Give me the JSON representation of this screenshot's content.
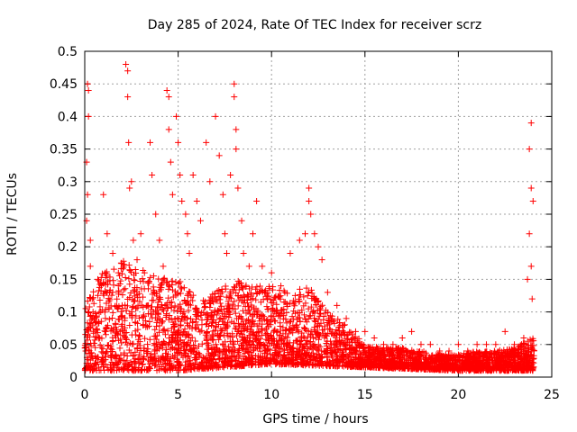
{
  "chart_data": {
    "type": "scatter",
    "title": "Day 285 of 2024, Rate Of TEC Index for receiver scrz",
    "xlabel": "GPS time / hours",
    "ylabel": "ROTI / TECUs",
    "xlim": [
      0,
      25
    ],
    "ylim": [
      0,
      0.5
    ],
    "xticks": [
      0,
      5,
      10,
      15,
      20,
      25
    ],
    "xtick_labels": [
      "0",
      "5",
      "10",
      "15",
      "20",
      "25"
    ],
    "yticks": [
      0,
      0.05,
      0.1,
      0.15,
      0.2,
      0.25,
      0.3,
      0.35,
      0.4,
      0.45,
      0.5
    ],
    "ytick_labels": [
      "0",
      "0.05",
      "0.1",
      "0.15",
      "0.2",
      "0.25",
      "0.3",
      "0.35",
      "0.4",
      "0.45",
      "0.5"
    ],
    "grid": true,
    "marker": "+",
    "color": "#ff0000",
    "series": [
      {
        "name": "ROTI",
        "points": [
          [
            0.05,
            0.04
          ],
          [
            0.1,
            0.33
          ],
          [
            0.1,
            0.24
          ],
          [
            0.15,
            0.45
          ],
          [
            0.2,
            0.4
          ],
          [
            0.2,
            0.44
          ],
          [
            0.15,
            0.28
          ],
          [
            0.3,
            0.21
          ],
          [
            0.3,
            0.17
          ],
          [
            0.4,
            0.12
          ],
          [
            0.5,
            0.09
          ],
          [
            0.7,
            0.15
          ],
          [
            1.0,
            0.28
          ],
          [
            1.2,
            0.22
          ],
          [
            1.5,
            0.19
          ],
          [
            1.8,
            0.16
          ],
          [
            2.0,
            0.11
          ],
          [
            2.2,
            0.48
          ],
          [
            2.3,
            0.47
          ],
          [
            2.3,
            0.43
          ],
          [
            2.35,
            0.36
          ],
          [
            2.4,
            0.29
          ],
          [
            2.5,
            0.3
          ],
          [
            2.6,
            0.21
          ],
          [
            2.8,
            0.18
          ],
          [
            3.0,
            0.22
          ],
          [
            3.2,
            0.16
          ],
          [
            3.5,
            0.36
          ],
          [
            3.6,
            0.31
          ],
          [
            3.8,
            0.25
          ],
          [
            4.0,
            0.21
          ],
          [
            4.2,
            0.17
          ],
          [
            4.4,
            0.44
          ],
          [
            4.5,
            0.43
          ],
          [
            4.5,
            0.38
          ],
          [
            4.6,
            0.33
          ],
          [
            4.7,
            0.28
          ],
          [
            4.9,
            0.4
          ],
          [
            5.0,
            0.36
          ],
          [
            5.1,
            0.31
          ],
          [
            5.2,
            0.27
          ],
          [
            5.4,
            0.25
          ],
          [
            5.5,
            0.22
          ],
          [
            5.6,
            0.19
          ],
          [
            5.8,
            0.31
          ],
          [
            6.0,
            0.27
          ],
          [
            6.2,
            0.24
          ],
          [
            6.5,
            0.36
          ],
          [
            6.7,
            0.3
          ],
          [
            7.0,
            0.4
          ],
          [
            7.2,
            0.34
          ],
          [
            7.4,
            0.28
          ],
          [
            7.5,
            0.22
          ],
          [
            7.6,
            0.19
          ],
          [
            7.8,
            0.31
          ],
          [
            8.0,
            0.45
          ],
          [
            8.0,
            0.43
          ],
          [
            8.1,
            0.38
          ],
          [
            8.1,
            0.35
          ],
          [
            8.2,
            0.29
          ],
          [
            8.4,
            0.24
          ],
          [
            8.5,
            0.19
          ],
          [
            8.8,
            0.17
          ],
          [
            9.0,
            0.22
          ],
          [
            9.2,
            0.27
          ],
          [
            9.5,
            0.17
          ],
          [
            10.0,
            0.16
          ],
          [
            10.5,
            0.14
          ],
          [
            11.0,
            0.19
          ],
          [
            11.5,
            0.21
          ],
          [
            11.8,
            0.22
          ],
          [
            12.0,
            0.29
          ],
          [
            12.0,
            0.27
          ],
          [
            12.1,
            0.25
          ],
          [
            12.3,
            0.22
          ],
          [
            12.5,
            0.2
          ],
          [
            12.7,
            0.18
          ],
          [
            13.0,
            0.13
          ],
          [
            13.5,
            0.11
          ],
          [
            14.0,
            0.09
          ],
          [
            14.5,
            0.07
          ],
          [
            15.0,
            0.07
          ],
          [
            15.5,
            0.06
          ],
          [
            16.0,
            0.05
          ],
          [
            16.5,
            0.05
          ],
          [
            17.0,
            0.06
          ],
          [
            17.5,
            0.07
          ],
          [
            18.0,
            0.05
          ],
          [
            18.5,
            0.05
          ],
          [
            19.0,
            0.04
          ],
          [
            19.5,
            0.04
          ],
          [
            20.0,
            0.05
          ],
          [
            20.5,
            0.04
          ],
          [
            21.0,
            0.05
          ],
          [
            21.5,
            0.05
          ],
          [
            22.0,
            0.05
          ],
          [
            22.5,
            0.07
          ],
          [
            23.0,
            0.05
          ],
          [
            23.5,
            0.06
          ],
          [
            23.7,
            0.15
          ],
          [
            23.8,
            0.35
          ],
          [
            23.8,
            0.22
          ],
          [
            23.9,
            0.39
          ],
          [
            23.9,
            0.29
          ],
          [
            24.0,
            0.27
          ],
          [
            23.9,
            0.17
          ],
          [
            23.95,
            0.12
          ]
        ]
      }
    ],
    "density_profile": {
      "description": "approximate upper envelope of the dense ROTI band (hours, TECUs)",
      "points": [
        [
          0,
          0.14
        ],
        [
          1,
          0.16
        ],
        [
          2,
          0.18
        ],
        [
          3,
          0.17
        ],
        [
          4,
          0.16
        ],
        [
          5,
          0.15
        ],
        [
          6,
          0.12
        ],
        [
          7,
          0.13
        ],
        [
          8,
          0.15
        ],
        [
          9,
          0.14
        ],
        [
          10,
          0.14
        ],
        [
          11,
          0.13
        ],
        [
          12,
          0.14
        ],
        [
          13,
          0.1
        ],
        [
          14,
          0.08
        ],
        [
          15,
          0.05
        ],
        [
          16,
          0.045
        ],
        [
          17,
          0.045
        ],
        [
          18,
          0.04
        ],
        [
          19,
          0.035
        ],
        [
          20,
          0.035
        ],
        [
          21,
          0.04
        ],
        [
          22,
          0.04
        ],
        [
          23,
          0.045
        ],
        [
          24,
          0.06
        ]
      ],
      "floor": [
        [
          0,
          0.01
        ],
        [
          5,
          0.01
        ],
        [
          10,
          0.02
        ],
        [
          15,
          0.015
        ],
        [
          20,
          0.01
        ],
        [
          24,
          0.01
        ]
      ]
    }
  }
}
